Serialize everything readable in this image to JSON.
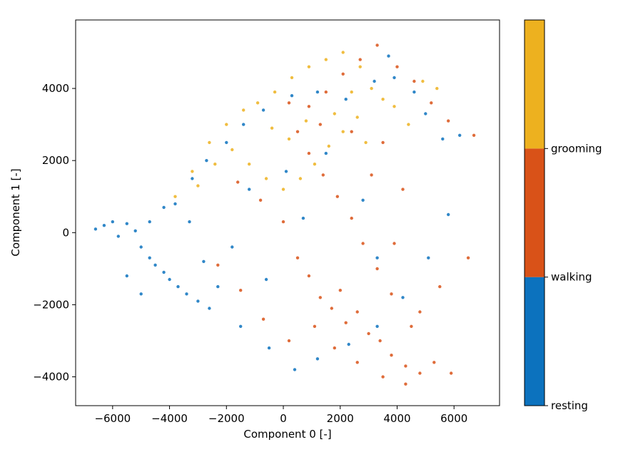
{
  "chart_data": {
    "type": "scatter",
    "title": "",
    "xlabel": "Component 0 [-]",
    "ylabel": "Component 1 [-]",
    "xlim": [
      -7300,
      7600
    ],
    "ylim": [
      -4800,
      5900
    ],
    "xticks": [
      -6000,
      -4000,
      -2000,
      0,
      2000,
      4000,
      6000
    ],
    "xtick_labels": [
      "−6000",
      "−4000",
      "−2000",
      "0",
      "2000",
      "4000",
      "6000"
    ],
    "yticks": [
      -4000,
      -2000,
      0,
      2000,
      4000
    ],
    "ytick_labels": [
      "−4000",
      "−2000",
      "0",
      "2000",
      "4000"
    ],
    "grid": false,
    "colorbar": {
      "categories": [
        {
          "label": "resting",
          "color": "#0C72BE"
        },
        {
          "label": "walking",
          "color": "#D95218"
        },
        {
          "label": "grooming",
          "color": "#EDB11F"
        }
      ]
    },
    "series": [
      {
        "color": "#0C72BE",
        "points": [
          [
            -6600,
            100
          ],
          [
            -6300,
            200
          ],
          [
            -6000,
            300
          ],
          [
            -5800,
            -100
          ],
          [
            -5500,
            250
          ],
          [
            -5200,
            50
          ],
          [
            -5000,
            -400
          ],
          [
            -4700,
            -700
          ],
          [
            -4500,
            -900
          ],
          [
            -4200,
            -1100
          ],
          [
            -4000,
            -1300
          ],
          [
            -3700,
            -1500
          ],
          [
            -3400,
            -1700
          ],
          [
            -3000,
            -1900
          ],
          [
            -2600,
            -2100
          ],
          [
            -2300,
            -1500
          ],
          [
            -2800,
            -800
          ],
          [
            -3300,
            300
          ],
          [
            -3800,
            800
          ],
          [
            -3200,
            1500
          ],
          [
            -2700,
            2000
          ],
          [
            -2000,
            2500
          ],
          [
            -1400,
            3000
          ],
          [
            -700,
            3400
          ],
          [
            300,
            3800
          ],
          [
            1200,
            3900
          ],
          [
            2200,
            3700
          ],
          [
            3200,
            4200
          ],
          [
            3700,
            4900
          ],
          [
            3900,
            4300
          ],
          [
            4600,
            3900
          ],
          [
            5000,
            3300
          ],
          [
            5600,
            2600
          ],
          [
            6200,
            2700
          ],
          [
            5800,
            500
          ],
          [
            5100,
            -700
          ],
          [
            4200,
            -1800
          ],
          [
            3300,
            -2600
          ],
          [
            2300,
            -3100
          ],
          [
            1200,
            -3500
          ],
          [
            400,
            -3800
          ],
          [
            -500,
            -3200
          ],
          [
            -1500,
            -2600
          ],
          [
            -5000,
            -1700
          ],
          [
            -5500,
            -1200
          ],
          [
            -4700,
            300
          ],
          [
            -4200,
            700
          ],
          [
            -1200,
            1200
          ],
          [
            100,
            1700
          ],
          [
            1500,
            2200
          ],
          [
            2800,
            900
          ],
          [
            3300,
            -700
          ],
          [
            -1800,
            -400
          ],
          [
            -600,
            -1300
          ],
          [
            700,
            400
          ]
        ]
      },
      {
        "color": "#D95218",
        "points": [
          [
            -1600,
            1400
          ],
          [
            -800,
            900
          ],
          [
            0,
            300
          ],
          [
            500,
            -700
          ],
          [
            900,
            -1200
          ],
          [
            1300,
            -1800
          ],
          [
            1700,
            -2100
          ],
          [
            2200,
            -2500
          ],
          [
            2600,
            -2200
          ],
          [
            3000,
            -2800
          ],
          [
            3400,
            -3000
          ],
          [
            3800,
            -3400
          ],
          [
            4300,
            -3700
          ],
          [
            4800,
            -3900
          ],
          [
            5300,
            -3600
          ],
          [
            5900,
            -3900
          ],
          [
            4500,
            -2600
          ],
          [
            3800,
            -1700
          ],
          [
            3300,
            -1000
          ],
          [
            2800,
            -300
          ],
          [
            2400,
            400
          ],
          [
            1900,
            1000
          ],
          [
            1400,
            1600
          ],
          [
            900,
            2200
          ],
          [
            500,
            2800
          ],
          [
            900,
            3500
          ],
          [
            1500,
            3900
          ],
          [
            2100,
            4400
          ],
          [
            2700,
            4800
          ],
          [
            3300,
            5200
          ],
          [
            4000,
            4600
          ],
          [
            4600,
            4200
          ],
          [
            5200,
            3600
          ],
          [
            5800,
            3100
          ],
          [
            6700,
            2700
          ],
          [
            6500,
            -700
          ],
          [
            5500,
            -1500
          ],
          [
            4800,
            -2200
          ],
          [
            3900,
            -300
          ],
          [
            3100,
            1600
          ],
          [
            2000,
            -1600
          ],
          [
            1100,
            -2600
          ],
          [
            200,
            -3000
          ],
          [
            -700,
            -2400
          ],
          [
            -1500,
            -1600
          ],
          [
            -2300,
            -900
          ],
          [
            4300,
            -4200
          ],
          [
            3500,
            -4000
          ],
          [
            2600,
            -3600
          ],
          [
            1800,
            -3200
          ],
          [
            3500,
            2500
          ],
          [
            4200,
            1200
          ],
          [
            2400,
            2800
          ],
          [
            1300,
            3000
          ],
          [
            200,
            3600
          ]
        ]
      },
      {
        "color": "#EDB11F",
        "points": [
          [
            -3800,
            1000
          ],
          [
            -3200,
            1700
          ],
          [
            -2600,
            2500
          ],
          [
            -2000,
            3000
          ],
          [
            -1400,
            3400
          ],
          [
            -900,
            3600
          ],
          [
            -300,
            3900
          ],
          [
            300,
            4300
          ],
          [
            900,
            4600
          ],
          [
            1500,
            4800
          ],
          [
            2100,
            5000
          ],
          [
            2700,
            4600
          ],
          [
            3100,
            4000
          ],
          [
            2600,
            3200
          ],
          [
            2100,
            2800
          ],
          [
            1600,
            2400
          ],
          [
            1100,
            1900
          ],
          [
            600,
            1500
          ],
          [
            0,
            1200
          ],
          [
            -600,
            1500
          ],
          [
            -1200,
            1900
          ],
          [
            -1800,
            2300
          ],
          [
            -2400,
            1900
          ],
          [
            -3000,
            1300
          ],
          [
            3900,
            3500
          ],
          [
            4400,
            3000
          ],
          [
            4900,
            4200
          ],
          [
            5400,
            4000
          ],
          [
            1800,
            3300
          ],
          [
            2400,
            3900
          ],
          [
            800,
            3100
          ],
          [
            200,
            2600
          ],
          [
            -400,
            2900
          ],
          [
            2900,
            2500
          ],
          [
            3500,
            3700
          ]
        ]
      }
    ]
  }
}
